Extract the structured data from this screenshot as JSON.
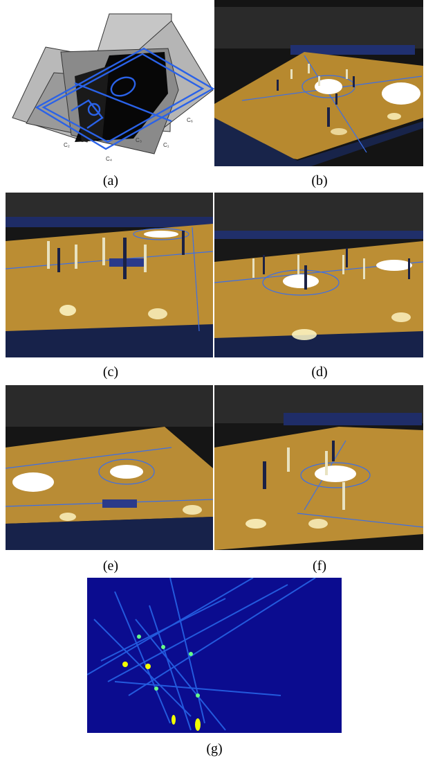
{
  "figure": {
    "captions": {
      "a": "(a)",
      "b": "(b)",
      "c": "(c)",
      "d": "(d)",
      "e": "(e)",
      "f": "(f)",
      "g": "(g)"
    },
    "camera_labels": {
      "c2": "C₂",
      "c3": "C₃",
      "c4": "C₄",
      "c1": "C₁",
      "c6": "C₆"
    },
    "colors": {
      "court_wood": "#b88c3a",
      "court_line_blue": "#3b6ee8",
      "heatmap_bg": "#0b0c8f",
      "heatmap_ray": "#2e7bff",
      "heatmap_peak": "#f2ff00"
    }
  }
}
